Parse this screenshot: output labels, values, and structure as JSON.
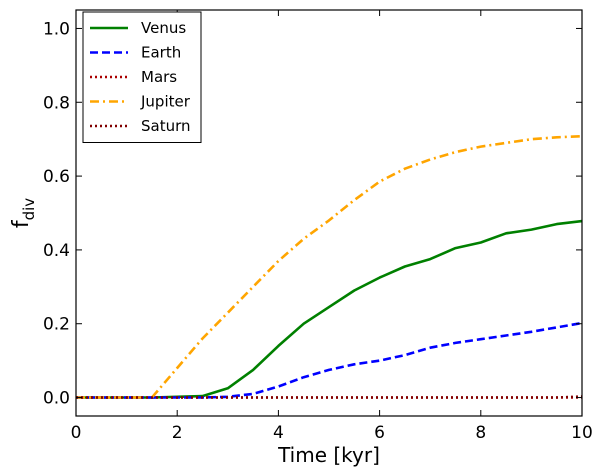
{
  "chart_data": {
    "type": "line",
    "xlabel": "Time [kyr]",
    "ylabel": "f_div",
    "ylabel_main": "f",
    "ylabel_sub": "div",
    "xlim": [
      0,
      10
    ],
    "ylim": [
      -0.05,
      1.05
    ],
    "x_ticks": [
      0,
      2,
      4,
      6,
      8,
      10
    ],
    "x_tick_labels": [
      "0",
      "2",
      "4",
      "6",
      "8",
      "10"
    ],
    "y_ticks": [
      0.0,
      0.2,
      0.4,
      0.6,
      0.8,
      1.0
    ],
    "y_tick_labels": [
      "0.0",
      "0.2",
      "0.4",
      "0.6",
      "0.8",
      "1.0"
    ],
    "grid": false,
    "legend_position": "top-left",
    "x": [
      0,
      0.5,
      1,
      1.5,
      2,
      2.5,
      3,
      3.5,
      4,
      4.5,
      5,
      5.5,
      6,
      6.5,
      7,
      7.5,
      8,
      8.5,
      9,
      9.5,
      10
    ],
    "series": [
      {
        "name": "Venus",
        "color": "#008000",
        "dash": "solid",
        "values": [
          0,
          0,
          0,
          0,
          0.002,
          0.004,
          0.025,
          0.075,
          0.14,
          0.2,
          0.245,
          0.29,
          0.325,
          0.355,
          0.375,
          0.405,
          0.42,
          0.445,
          0.455,
          0.47,
          0.478
        ]
      },
      {
        "name": "Earth",
        "color": "#0000ff",
        "dash": "dashed",
        "values": [
          0,
          0,
          0,
          0,
          0,
          0,
          0.002,
          0.01,
          0.03,
          0.055,
          0.075,
          0.09,
          0.1,
          0.115,
          0.135,
          0.148,
          0.158,
          0.168,
          0.178,
          0.19,
          0.202
        ]
      },
      {
        "name": "Mars",
        "color": "#aa0000",
        "dash": "dotted",
        "values": [
          0,
          0,
          0,
          0,
          0,
          0,
          0,
          0,
          0,
          0,
          0,
          0,
          0,
          0,
          0,
          0,
          0,
          0,
          0,
          0,
          0
        ]
      },
      {
        "name": "Jupiter",
        "color": "#ffa500",
        "dash": "dashdot",
        "values": [
          0,
          0,
          0,
          0,
          0.08,
          0.16,
          0.23,
          0.3,
          0.37,
          0.43,
          0.48,
          0.535,
          0.585,
          0.62,
          0.645,
          0.665,
          0.68,
          0.69,
          0.7,
          0.705,
          0.708
        ]
      },
      {
        "name": "Saturn",
        "color": "#800000",
        "dash": "dotted",
        "values": [
          0,
          0,
          0,
          0,
          0,
          0,
          0,
          0,
          0,
          0,
          0,
          0,
          0,
          0,
          0,
          0,
          0,
          0,
          0,
          0,
          0.003
        ]
      }
    ]
  }
}
